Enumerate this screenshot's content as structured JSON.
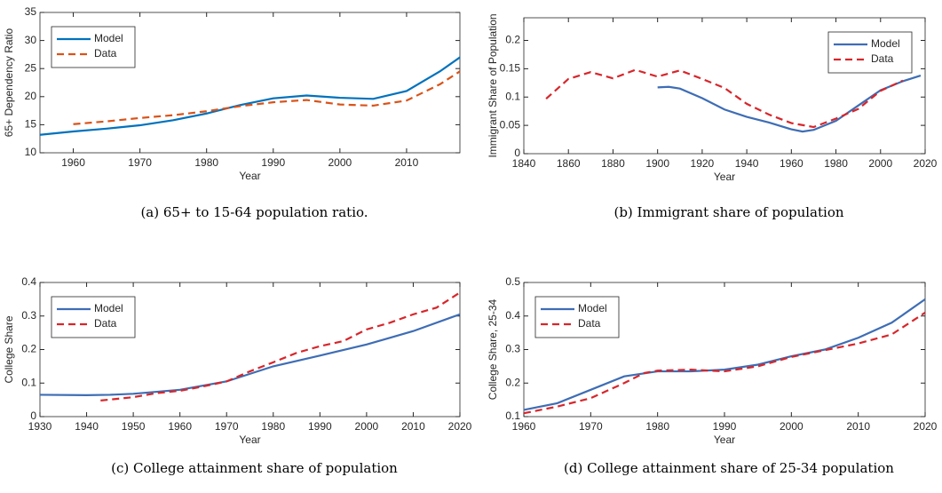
{
  "chart_data": [
    {
      "type": "line",
      "caption": "(a) 65+ to 15-64 population ratio.",
      "xlabel": "Year",
      "ylabel": "65+ Dependency Ratio",
      "xlim": [
        1955,
        2018
      ],
      "xticks": [
        1960,
        1970,
        1980,
        1990,
        2000,
        2010
      ],
      "ylim": [
        10,
        35
      ],
      "yticks": [
        10,
        15,
        20,
        25,
        30,
        35
      ],
      "legend": "upper left",
      "series": [
        {
          "name": "Model",
          "color": "#0072bd",
          "style": "solid",
          "x": [
            1955,
            1960,
            1965,
            1970,
            1975,
            1980,
            1985,
            1990,
            1995,
            2000,
            2005,
            2010,
            2015,
            2018
          ],
          "values": [
            13.2,
            13.8,
            14.3,
            14.9,
            15.8,
            17.0,
            18.5,
            19.7,
            20.2,
            19.8,
            19.6,
            21.0,
            24.5,
            27.0
          ]
        },
        {
          "name": "Data",
          "color": "#d95319",
          "style": "dashed",
          "x": [
            1960,
            1965,
            1970,
            1975,
            1980,
            1985,
            1990,
            1995,
            2000,
            2005,
            2010,
            2015,
            2018
          ],
          "values": [
            15.1,
            15.6,
            16.2,
            16.7,
            17.4,
            18.3,
            19.0,
            19.4,
            18.6,
            18.4,
            19.3,
            22.2,
            24.5
          ]
        }
      ]
    },
    {
      "type": "line",
      "caption": "(b) Immigrant share of population",
      "xlabel": "Year",
      "ylabel": "Immigrant Share of Population",
      "xlim": [
        1840,
        2020
      ],
      "xticks": [
        1840,
        1860,
        1880,
        1900,
        1920,
        1940,
        1960,
        1980,
        2000,
        2020
      ],
      "ylim": [
        0,
        0.24
      ],
      "yticks": [
        0,
        0.05,
        0.1,
        0.15,
        0.2
      ],
      "legend": "upper right",
      "series": [
        {
          "name": "Model",
          "color": "#3e6db5",
          "style": "solid",
          "x": [
            1900,
            1905,
            1910,
            1920,
            1930,
            1940,
            1950,
            1960,
            1965,
            1970,
            1980,
            1990,
            2000,
            2010,
            2018
          ],
          "values": [
            0.117,
            0.118,
            0.115,
            0.098,
            0.078,
            0.065,
            0.055,
            0.043,
            0.039,
            0.042,
            0.058,
            0.085,
            0.112,
            0.128,
            0.138
          ]
        },
        {
          "name": "Data",
          "color": "#d7262b",
          "style": "dashed",
          "x": [
            1850,
            1860,
            1870,
            1880,
            1890,
            1900,
            1910,
            1920,
            1930,
            1940,
            1950,
            1960,
            1970,
            1980,
            1990,
            2000,
            2010
          ],
          "values": [
            0.097,
            0.132,
            0.144,
            0.133,
            0.148,
            0.136,
            0.147,
            0.132,
            0.116,
            0.088,
            0.069,
            0.054,
            0.047,
            0.062,
            0.079,
            0.111,
            0.129
          ]
        }
      ]
    },
    {
      "type": "line",
      "caption": "(c) College attainment share of population",
      "xlabel": "Year",
      "ylabel": "College Share",
      "xlim": [
        1930,
        2020
      ],
      "xticks": [
        1930,
        1940,
        1950,
        1960,
        1970,
        1980,
        1990,
        2000,
        2010,
        2020
      ],
      "ylim": [
        0,
        0.4
      ],
      "yticks": [
        0,
        0.1,
        0.2,
        0.3,
        0.4
      ],
      "legend": "upper left",
      "series": [
        {
          "name": "Model",
          "color": "#3e6db5",
          "style": "solid",
          "x": [
            1930,
            1940,
            1945,
            1950,
            1960,
            1970,
            1980,
            1990,
            2000,
            2010,
            2020
          ],
          "values": [
            0.065,
            0.064,
            0.065,
            0.068,
            0.08,
            0.105,
            0.15,
            0.182,
            0.215,
            0.255,
            0.305
          ]
        },
        {
          "name": "Data",
          "color": "#d7262b",
          "style": "dashed",
          "x": [
            1943,
            1950,
            1955,
            1960,
            1965,
            1970,
            1975,
            1980,
            1985,
            1990,
            1995,
            2000,
            2005,
            2010,
            2015,
            2020
          ],
          "values": [
            0.048,
            0.058,
            0.07,
            0.077,
            0.09,
            0.105,
            0.135,
            0.162,
            0.19,
            0.21,
            0.225,
            0.26,
            0.28,
            0.305,
            0.325,
            0.37
          ]
        }
      ]
    },
    {
      "type": "line",
      "caption": "(d) College attainment share of 25-34 population",
      "xlabel": "Year",
      "ylabel": "College Share, 25-34",
      "xlim": [
        1960,
        2020
      ],
      "xticks": [
        1960,
        1970,
        1980,
        1990,
        2000,
        2010,
        2020
      ],
      "ylim": [
        0.1,
        0.5
      ],
      "yticks": [
        0.1,
        0.2,
        0.3,
        0.4,
        0.5
      ],
      "legend": "upper left",
      "series": [
        {
          "name": "Model",
          "color": "#3e6db5",
          "style": "solid",
          "x": [
            1960,
            1965,
            1970,
            1975,
            1980,
            1985,
            1990,
            1995,
            2000,
            2005,
            2010,
            2015,
            2020
          ],
          "values": [
            0.12,
            0.14,
            0.18,
            0.22,
            0.235,
            0.235,
            0.24,
            0.255,
            0.28,
            0.3,
            0.335,
            0.38,
            0.45
          ]
        },
        {
          "name": "Data",
          "color": "#d7262b",
          "style": "dashed",
          "x": [
            1960,
            1965,
            1970,
            1975,
            1978,
            1980,
            1985,
            1990,
            1995,
            2000,
            2005,
            2010,
            2015,
            2020
          ],
          "values": [
            0.11,
            0.13,
            0.155,
            0.2,
            0.23,
            0.237,
            0.24,
            0.235,
            0.25,
            0.278,
            0.298,
            0.318,
            0.345,
            0.41
          ]
        }
      ]
    }
  ]
}
